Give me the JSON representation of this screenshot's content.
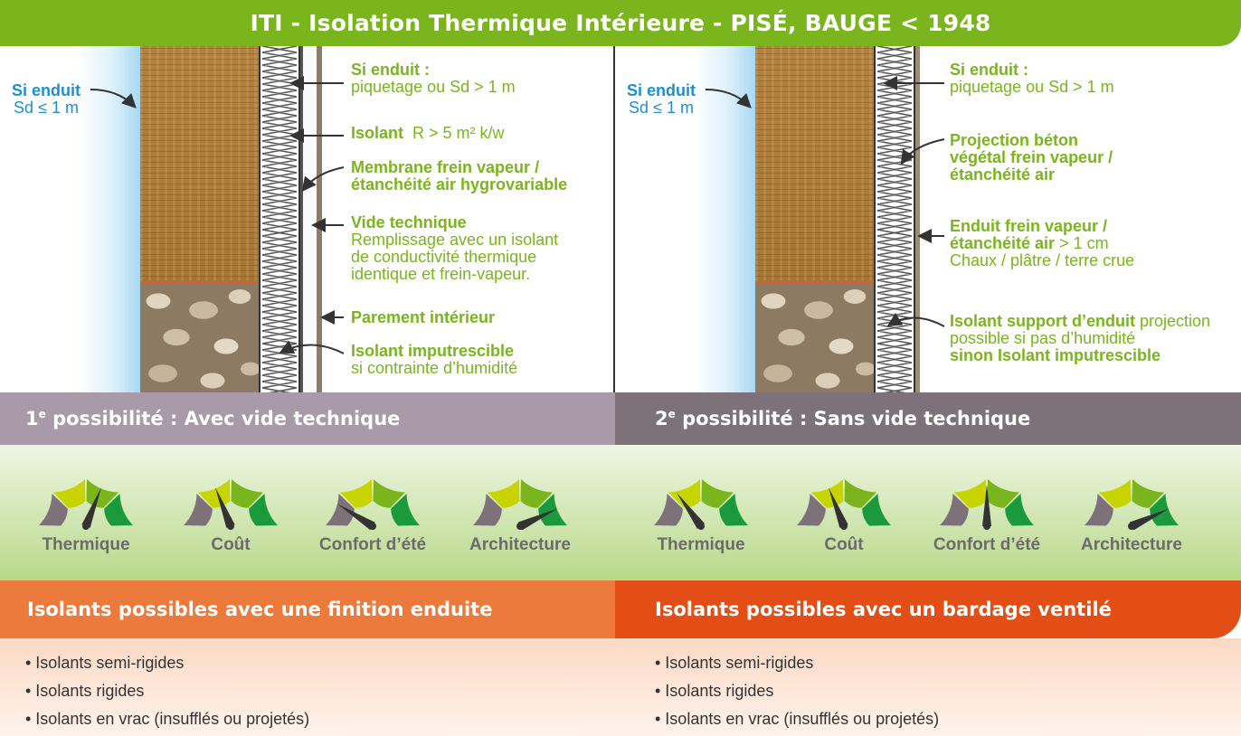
{
  "title": "ITI - Isolation Thermique Intérieure - PISÉ, BAUGE < 1948",
  "left": {
    "label_si_enduit_ext": "Si enduit",
    "label_sd_ext": "Sd ≤ 1 m",
    "label_si_enduit_int": "Si enduit :",
    "label_piquetage": "piquetage ou Sd > 1 m",
    "label_isolant": "Isolant",
    "label_isolant_r": "R > 5 m² k/w",
    "label_membrane_1": "Membrane frein vapeur /",
    "label_membrane_2": "étanchéité air hygrovariable",
    "label_vide": "Vide technique",
    "label_vide_1": "Remplissage avec un isolant",
    "label_vide_2": "de conductivité thermique",
    "label_vide_3": "identique et frein-vapeur.",
    "label_parement": "Parement intérieur",
    "label_imputrescible": "Isolant imputrescible",
    "label_humidite": "si contrainte d’humidité",
    "possibility_num": "1",
    "possibility_sup": "e",
    "possibility_text": " possibilité : Avec vide technique",
    "gauges": [
      {
        "label": "Thermique",
        "level": 0.62
      },
      {
        "label": "Coût",
        "level": 0.38
      },
      {
        "label": "Confort d’été",
        "level": 0.18
      },
      {
        "label": "Architecture",
        "level": 0.86
      }
    ],
    "insul_bar": "Isolants possibles avec une finition enduite",
    "insul_items": [
      "• Isolants semi-rigides",
      "• Isolants rigides",
      "• Isolants en vrac (insufflés ou projetés)"
    ]
  },
  "right": {
    "label_si_enduit_ext": "Si enduit",
    "label_sd_ext": "Sd ≤ 1 m",
    "label_si_enduit_int": "Si enduit :",
    "label_piquetage": "piquetage ou Sd > 1 m",
    "label_projection_1": "Projection béton",
    "label_projection_2": "végétal frein vapeur /",
    "label_projection_3": "étanchéité air",
    "label_enduit_1": "Enduit frein vapeur /",
    "label_enduit_2": "étanchéité air",
    "label_enduit_2b": " > 1 cm",
    "label_enduit_3": "Chaux / plâtre / terre crue",
    "label_support": "Isolant support d’enduit",
    "label_support_b": " projection",
    "label_support_2": "possible si pas d’humidité",
    "label_support_3": "sinon Isolant imputrescible",
    "possibility_num": "2",
    "possibility_sup": "e",
    "possibility_text": " possibilité : Sans vide technique",
    "gauges": [
      {
        "label": "Thermique",
        "level": 0.3
      },
      {
        "label": "Coût",
        "level": 0.38
      },
      {
        "label": "Confort d’été",
        "level": 0.5
      },
      {
        "label": "Architecture",
        "level": 0.86
      }
    ],
    "insul_bar": "Isolants possibles avec un bardage ventilé",
    "insul_items": [
      "• Isolants semi-rigides",
      "• Isolants rigides",
      "• Isolants en vrac (insufflés ou projetés)"
    ]
  },
  "colors": {
    "green": "#7ab51d",
    "blue": "#1f8fd0",
    "gauge_grey": "#7d7279",
    "gauge_yellow": "#c8d400",
    "gauge_light_green": "#7ab51d",
    "gauge_dark_green": "#1a9a3c"
  }
}
